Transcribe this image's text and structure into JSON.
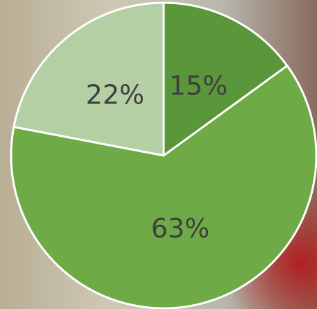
{
  "chart_data": {
    "type": "pie",
    "categories": [
      null,
      null,
      null
    ],
    "values": [
      15,
      63,
      22
    ],
    "value_labels": [
      "15%",
      "63%",
      "22%"
    ],
    "colors": [
      "#5a963a",
      "#6eab46",
      "#b3cfa3"
    ]
  }
}
